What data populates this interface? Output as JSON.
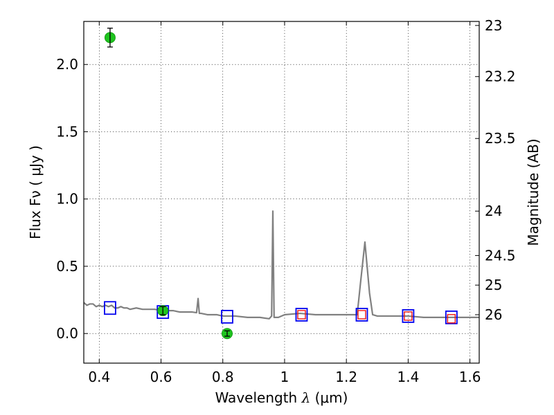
{
  "chart_data": {
    "type": "scatter",
    "title": "",
    "xlabel": "Wavelength  λ (μm)",
    "ylabel": "Flux  Fν  ( μJy )",
    "ylabel_right": "Magnitude (AB)",
    "xlim": [
      0.35,
      1.63
    ],
    "ylim": [
      -0.22,
      2.32
    ],
    "grid": true,
    "x_ticks": [
      {
        "value": 0.4,
        "label": "0.4"
      },
      {
        "value": 0.6,
        "label": "0.6"
      },
      {
        "value": 0.8,
        "label": "0.8"
      },
      {
        "value": 1.0,
        "label": "1"
      },
      {
        "value": 1.2,
        "label": "1.2"
      },
      {
        "value": 1.4,
        "label": "1.4"
      },
      {
        "value": 1.6,
        "label": "1.6"
      }
    ],
    "y_ticks": [
      {
        "value": 0.0,
        "label": "0.0"
      },
      {
        "value": 0.5,
        "label": "0.5"
      },
      {
        "value": 1.0,
        "label": "1.0"
      },
      {
        "value": 1.5,
        "label": "1.5"
      },
      {
        "value": 2.0,
        "label": "2.0"
      }
    ],
    "right_ticks": [
      {
        "flux": 2.29,
        "label": "23"
      },
      {
        "flux": 1.91,
        "label": "23.2"
      },
      {
        "flux": 1.45,
        "label": "23.5"
      },
      {
        "flux": 0.91,
        "label": "24"
      },
      {
        "flux": 0.58,
        "label": "24.5"
      },
      {
        "flux": 0.36,
        "label": "25"
      },
      {
        "flux": 0.14,
        "label": "26"
      }
    ],
    "colors": {
      "spectrum": "#808080",
      "photometry": "#1fc41f",
      "model_box": "#0000ee",
      "model_box_inner": "#ee1111"
    },
    "series": [
      {
        "kind": "spectrum",
        "x": [
          0.35,
          0.36,
          0.37,
          0.38,
          0.39,
          0.4,
          0.41,
          0.42,
          0.43,
          0.44,
          0.45,
          0.46,
          0.47,
          0.48,
          0.49,
          0.5,
          0.52,
          0.54,
          0.56,
          0.58,
          0.6,
          0.62,
          0.64,
          0.66,
          0.68,
          0.7,
          0.715,
          0.72,
          0.724,
          0.73,
          0.75,
          0.78,
          0.8,
          0.84,
          0.88,
          0.92,
          0.95,
          0.958,
          0.962,
          0.966,
          0.97,
          0.98,
          1.0,
          1.05,
          1.1,
          1.15,
          1.2,
          1.235,
          1.245,
          1.26,
          1.275,
          1.285,
          1.3,
          1.35,
          1.4,
          1.45,
          1.5,
          1.55,
          1.6,
          1.63
        ],
        "y": [
          0.23,
          0.21,
          0.22,
          0.22,
          0.2,
          0.21,
          0.2,
          0.21,
          0.2,
          0.21,
          0.19,
          0.19,
          0.2,
          0.19,
          0.19,
          0.18,
          0.19,
          0.18,
          0.18,
          0.18,
          0.17,
          0.17,
          0.17,
          0.16,
          0.16,
          0.16,
          0.155,
          0.26,
          0.15,
          0.15,
          0.14,
          0.14,
          0.13,
          0.13,
          0.12,
          0.12,
          0.11,
          0.13,
          0.91,
          0.12,
          0.12,
          0.12,
          0.14,
          0.15,
          0.14,
          0.14,
          0.14,
          0.14,
          0.36,
          0.68,
          0.3,
          0.14,
          0.13,
          0.13,
          0.13,
          0.12,
          0.12,
          0.12,
          0.12,
          0.12
        ]
      },
      {
        "kind": "photometry",
        "x": [
          0.435,
          0.606,
          0.814
        ],
        "y": [
          2.2,
          0.17,
          0.0
        ],
        "yerr": [
          0.07,
          0.03,
          0.02
        ]
      },
      {
        "kind": "model_blue_squares",
        "x": [
          0.435,
          0.606,
          0.814,
          1.055,
          1.25,
          1.4,
          1.54
        ],
        "y": [
          0.19,
          0.16,
          0.125,
          0.14,
          0.14,
          0.13,
          0.12
        ]
      },
      {
        "kind": "model_red_squares",
        "x": [
          1.055,
          1.25,
          1.4,
          1.54
        ],
        "y": [
          0.14,
          0.14,
          0.13,
          0.11
        ]
      }
    ]
  }
}
